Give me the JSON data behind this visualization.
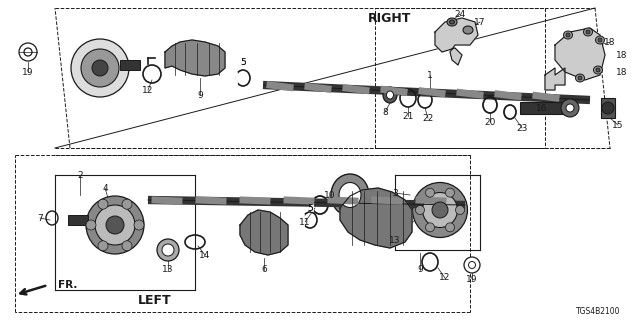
{
  "bg_color": "#ffffff",
  "line_color": "#1a1a1a",
  "part_code": "TGS4B2100",
  "title_right": "RIGHT",
  "title_left": "LEFT",
  "figsize": [
    6.4,
    3.2
  ],
  "dpi": 100
}
